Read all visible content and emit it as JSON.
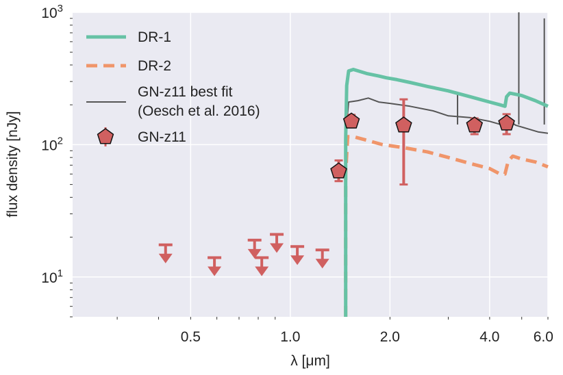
{
  "chart_data": {
    "type": "line",
    "title": "",
    "xlabel": "λ [μm]",
    "ylabel": "flux density [nJy]",
    "x_scale": "log",
    "y_scale": "log",
    "xlim": [
      0.22,
      6.0
    ],
    "ylim": [
      5,
      1000
    ],
    "grid": true,
    "legend_position": "top-left",
    "x_ticks": [
      {
        "value": 0.5,
        "label": "0.5"
      },
      {
        "value": 1.0,
        "label": "1.0"
      },
      {
        "value": 2.0,
        "label": "2.0"
      },
      {
        "value": 4.0,
        "label": "4.0"
      },
      {
        "value": 6.0,
        "label": "6.0"
      }
    ],
    "y_ticks": [
      {
        "value": 10,
        "base": "10",
        "exp": "1"
      },
      {
        "value": 100,
        "base": "10",
        "exp": "2"
      },
      {
        "value": 1000,
        "base": "10",
        "exp": "3"
      }
    ],
    "series": [
      {
        "name": "DR-1",
        "style": "solid-thick",
        "color": "#66c2a5",
        "points": [
          [
            1.47,
            5
          ],
          [
            1.47,
            110
          ],
          [
            1.48,
            280
          ],
          [
            1.5,
            360
          ],
          [
            1.55,
            370
          ],
          [
            1.7,
            345
          ],
          [
            1.85,
            330
          ],
          [
            1.95,
            320
          ],
          [
            2.1,
            310
          ],
          [
            2.3,
            295
          ],
          [
            2.6,
            275
          ],
          [
            3.0,
            255
          ],
          [
            3.5,
            230
          ],
          [
            4.0,
            210
          ],
          [
            4.3,
            200
          ],
          [
            4.45,
            195
          ],
          [
            4.5,
            230
          ],
          [
            4.6,
            245
          ],
          [
            5.0,
            235
          ],
          [
            5.5,
            215
          ],
          [
            6.0,
            195
          ]
        ]
      },
      {
        "name": "DR-2",
        "style": "dashed",
        "color": "#f0956a",
        "points": [
          [
            1.47,
            5
          ],
          [
            1.47,
            60
          ],
          [
            1.49,
            115
          ],
          [
            1.55,
            115
          ],
          [
            1.7,
            108
          ],
          [
            1.9,
            100
          ],
          [
            2.2,
            95
          ],
          [
            2.6,
            88
          ],
          [
            3.0,
            80
          ],
          [
            3.5,
            72
          ],
          [
            4.0,
            66
          ],
          [
            4.3,
            60
          ],
          [
            4.45,
            60
          ],
          [
            4.55,
            75
          ],
          [
            4.7,
            82
          ],
          [
            5.0,
            78
          ],
          [
            5.5,
            74
          ],
          [
            6.0,
            68
          ]
        ]
      },
      {
        "name": "GN-z11 best fit\n(Oesch et al. 2016)",
        "style": "solid-thin",
        "color": "#555555",
        "points": [
          [
            1.47,
            5
          ],
          [
            1.47,
            120
          ],
          [
            1.5,
            210
          ],
          [
            1.6,
            215
          ],
          [
            1.72,
            225
          ],
          [
            1.85,
            210
          ],
          [
            2.0,
            205
          ],
          [
            2.3,
            195
          ],
          [
            2.7,
            180
          ],
          [
            3.0,
            165
          ],
          [
            3.5,
            160
          ],
          [
            4.0,
            150
          ],
          [
            4.4,
            140
          ],
          [
            4.5,
            155
          ],
          [
            4.8,
            140
          ],
          [
            5.2,
            132
          ],
          [
            5.6,
            125
          ],
          [
            6.0,
            122
          ]
        ],
        "spikes": [
          [
            3.2,
            240
          ],
          [
            4.9,
            1000
          ],
          [
            5.85,
            900
          ]
        ]
      }
    ],
    "detections": {
      "name": "GN-z11",
      "color": "#d06060",
      "points": [
        {
          "x": 1.4,
          "y": 63,
          "y_low": 53,
          "y_high": 76
        },
        {
          "x": 1.53,
          "y": 150,
          "y_low": 135,
          "y_high": 168
        },
        {
          "x": 2.2,
          "y": 140,
          "y_low": 50,
          "y_high": 220
        },
        {
          "x": 3.6,
          "y": 140,
          "y_low": 120,
          "y_high": 158
        },
        {
          "x": 4.5,
          "y": 145,
          "y_low": 120,
          "y_high": 170
        }
      ]
    },
    "upper_limits": [
      {
        "x": 0.42,
        "y": 17.5
      },
      {
        "x": 0.59,
        "y": 14.0
      },
      {
        "x": 0.78,
        "y": 19.0
      },
      {
        "x": 0.82,
        "y": 14.0
      },
      {
        "x": 0.91,
        "y": 21.0
      },
      {
        "x": 1.05,
        "y": 17.0
      },
      {
        "x": 1.25,
        "y": 16.0
      }
    ]
  }
}
